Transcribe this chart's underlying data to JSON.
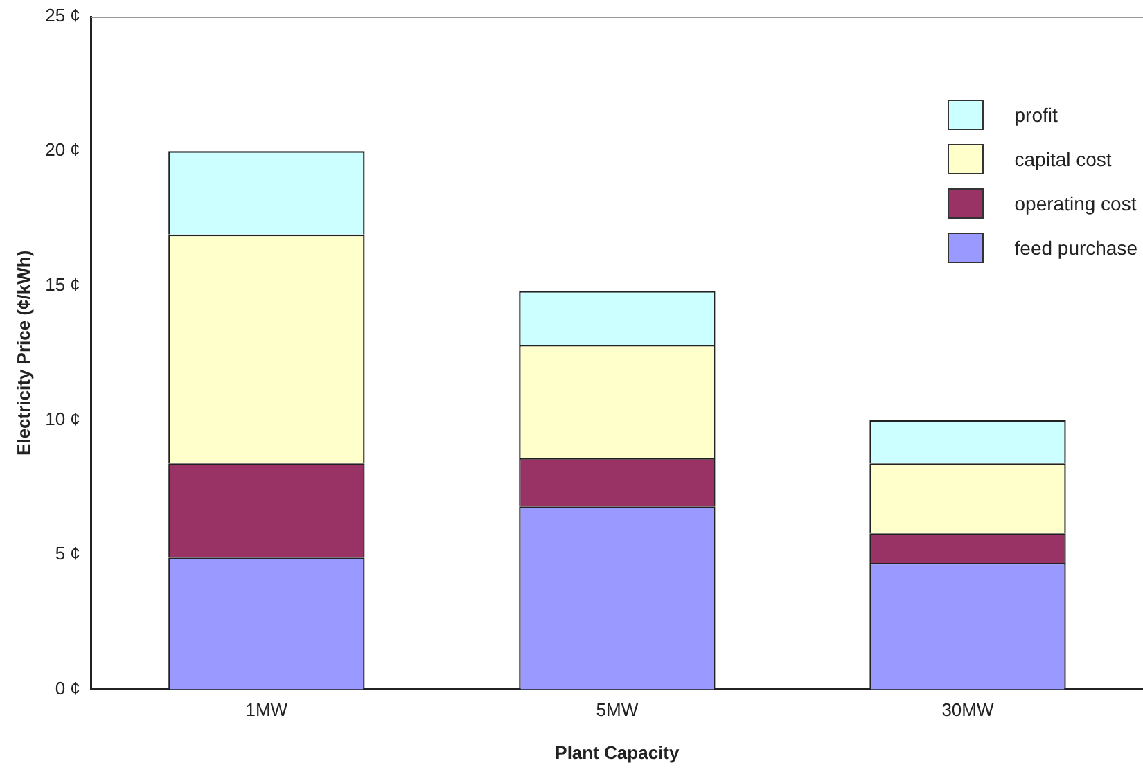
{
  "chart_data": {
    "type": "bar",
    "stacked": true,
    "xlabel": "Plant Capacity",
    "ylabel": "Electricity Price (¢/kWh)",
    "categories": [
      "1MW",
      "5MW",
      "30MW"
    ],
    "series": [
      {
        "name": "feed purchase",
        "color": "#9999ff",
        "values": [
          4.9,
          6.8,
          4.7
        ]
      },
      {
        "name": "operating cost",
        "color": "#993366",
        "values": [
          3.5,
          1.8,
          1.1
        ]
      },
      {
        "name": "capital cost",
        "color": "#ffffcc",
        "values": [
          8.5,
          4.2,
          2.6
        ]
      },
      {
        "name": "profit",
        "color": "#ccffff",
        "values": [
          3.1,
          2.0,
          1.6
        ]
      }
    ],
    "ylim": [
      0,
      25
    ],
    "yticks": [
      {
        "value": 0,
        "label": "0 ¢"
      },
      {
        "value": 5,
        "label": "5 ¢"
      },
      {
        "value": 10,
        "label": "10 ¢"
      },
      {
        "value": 15,
        "label": "15 ¢"
      },
      {
        "value": 20,
        "label": "20 ¢"
      },
      {
        "value": 25,
        "label": "25 ¢"
      }
    ],
    "grid": false,
    "legend": "top right"
  }
}
